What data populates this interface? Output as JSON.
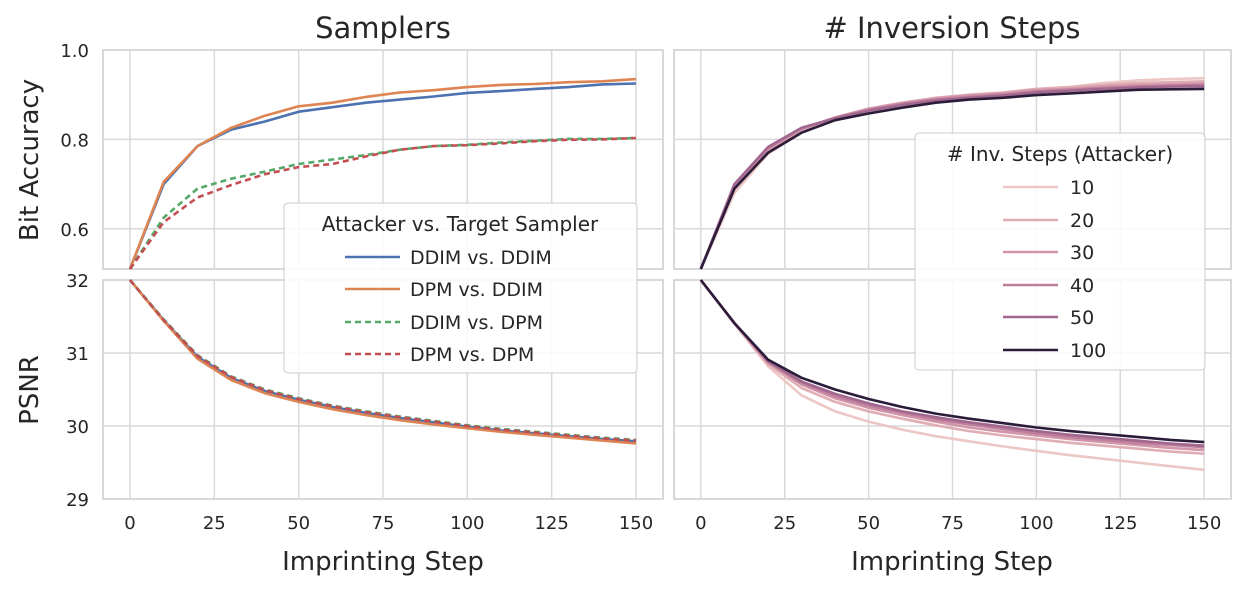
{
  "chart_data": [
    {
      "type": "line",
      "panel": "top-left",
      "title": "Samplers",
      "xlabel": "",
      "ylabel": "Bit Accuracy",
      "xlim": [
        -8,
        158
      ],
      "ylim": [
        0.51,
        1.0
      ],
      "yticks": [
        0.6,
        0.8,
        1.0
      ],
      "ytick_labels": [
        "0.6",
        "0.8",
        "1.0"
      ],
      "grid": true,
      "legend": {
        "title": "Attacker vs. Target Sampler",
        "position": "lower-right",
        "entries": [
          {
            "label": "DDIM vs. DDIM",
            "color": "#4c72b0",
            "dash": "solid"
          },
          {
            "label": "DPM vs. DDIM",
            "color": "#dd8452",
            "dash": "solid"
          },
          {
            "label": "DDIM vs. DPM",
            "color": "#55a868",
            "dash": "dashed"
          },
          {
            "label": "DPM vs. DPM",
            "color": "#c44e52",
            "dash": "dashed"
          }
        ]
      },
      "x": [
        0,
        10,
        20,
        30,
        40,
        50,
        60,
        70,
        80,
        90,
        100,
        110,
        120,
        130,
        140,
        150
      ],
      "series": [
        {
          "name": "DDIM vs. DDIM",
          "color": "#4c72b0",
          "dash": "solid",
          "values": [
            0.51,
            0.7,
            0.785,
            0.822,
            0.84,
            0.862,
            0.872,
            0.882,
            0.889,
            0.896,
            0.904,
            0.908,
            0.913,
            0.917,
            0.923,
            0.925
          ]
        },
        {
          "name": "DPM vs. DDIM",
          "color": "#dd8452",
          "dash": "solid",
          "values": [
            0.51,
            0.705,
            0.785,
            0.826,
            0.853,
            0.874,
            0.882,
            0.895,
            0.905,
            0.91,
            0.917,
            0.922,
            0.924,
            0.928,
            0.93,
            0.935
          ]
        },
        {
          "name": "DDIM vs. DPM",
          "color": "#55a868",
          "dash": "dashed",
          "values": [
            0.51,
            0.625,
            0.69,
            0.712,
            0.728,
            0.745,
            0.755,
            0.765,
            0.777,
            0.785,
            0.788,
            0.793,
            0.797,
            0.801,
            0.801,
            0.803
          ]
        },
        {
          "name": "DPM vs. DPM",
          "color": "#c44e52",
          "dash": "dashed",
          "values": [
            0.51,
            0.615,
            0.67,
            0.698,
            0.722,
            0.738,
            0.745,
            0.762,
            0.777,
            0.785,
            0.787,
            0.791,
            0.796,
            0.799,
            0.8,
            0.803
          ]
        }
      ]
    },
    {
      "type": "line",
      "panel": "top-right",
      "title": "# Inversion Steps",
      "xlabel": "",
      "ylabel": "",
      "xlim": [
        -8,
        158
      ],
      "ylim": [
        0.51,
        1.0
      ],
      "grid": true,
      "legend": {
        "title": "# Inv. Steps (Attacker)",
        "position": "right",
        "entries": [
          {
            "label": "10",
            "color": "#ecc7c5"
          },
          {
            "label": "20",
            "color": "#e0adb5"
          },
          {
            "label": "30",
            "color": "#d295a8"
          },
          {
            "label": "40",
            "color": "#be7f9d"
          },
          {
            "label": "50",
            "color": "#a2678f"
          },
          {
            "label": "100",
            "color": "#2b1c3a"
          }
        ]
      },
      "x": [
        0,
        10,
        20,
        30,
        40,
        50,
        60,
        70,
        80,
        90,
        100,
        110,
        120,
        130,
        140,
        150
      ],
      "series": [
        {
          "name": "10",
          "color": "#ecc7c5",
          "values": [
            0.51,
            0.68,
            0.768,
            0.815,
            0.848,
            0.868,
            0.88,
            0.89,
            0.897,
            0.903,
            0.912,
            0.917,
            0.926,
            0.932,
            0.935,
            0.937
          ]
        },
        {
          "name": "20",
          "color": "#e0adb5",
          "values": [
            0.51,
            0.69,
            0.775,
            0.82,
            0.849,
            0.869,
            0.882,
            0.893,
            0.9,
            0.905,
            0.913,
            0.917,
            0.922,
            0.926,
            0.928,
            0.93
          ]
        },
        {
          "name": "30",
          "color": "#d295a8",
          "values": [
            0.51,
            0.695,
            0.778,
            0.823,
            0.849,
            0.868,
            0.881,
            0.891,
            0.898,
            0.903,
            0.91,
            0.913,
            0.918,
            0.921,
            0.923,
            0.925
          ]
        },
        {
          "name": "40",
          "color": "#be7f9d",
          "values": [
            0.51,
            0.698,
            0.781,
            0.825,
            0.848,
            0.866,
            0.879,
            0.889,
            0.895,
            0.9,
            0.907,
            0.911,
            0.915,
            0.918,
            0.92,
            0.922
          ]
        },
        {
          "name": "50",
          "color": "#a2678f",
          "values": [
            0.51,
            0.7,
            0.783,
            0.826,
            0.847,
            0.864,
            0.877,
            0.887,
            0.893,
            0.898,
            0.905,
            0.909,
            0.913,
            0.916,
            0.918,
            0.919
          ]
        },
        {
          "name": "100",
          "color": "#2b1c3a",
          "values": [
            0.51,
            0.69,
            0.77,
            0.815,
            0.843,
            0.858,
            0.871,
            0.882,
            0.889,
            0.893,
            0.899,
            0.903,
            0.907,
            0.911,
            0.912,
            0.913
          ]
        }
      ]
    },
    {
      "type": "line",
      "panel": "bottom-left",
      "title": "",
      "xlabel": "Imprinting Step",
      "ylabel": "PSNR",
      "xlim": [
        -8,
        158
      ],
      "ylim": [
        29,
        32
      ],
      "xticks": [
        0,
        25,
        50,
        75,
        100,
        125,
        150
      ],
      "xtick_labels": [
        "0",
        "25",
        "50",
        "75",
        "100",
        "125",
        "150"
      ],
      "yticks": [
        29,
        30,
        31,
        32
      ],
      "ytick_labels": [
        "29",
        "30",
        "31",
        "32"
      ],
      "grid": true,
      "x": [
        0,
        10,
        20,
        30,
        40,
        50,
        60,
        70,
        80,
        90,
        100,
        110,
        120,
        130,
        140,
        150
      ],
      "series": [
        {
          "name": "DDIM vs. DDIM",
          "color": "#4c72b0",
          "dash": "solid",
          "values": [
            32.0,
            31.45,
            30.95,
            30.66,
            30.48,
            30.36,
            30.26,
            30.18,
            30.11,
            30.05,
            29.99,
            29.94,
            29.9,
            29.86,
            29.82,
            29.79
          ]
        },
        {
          "name": "DPM vs. DDIM",
          "color": "#dd8452",
          "dash": "solid",
          "values": [
            32.0,
            31.44,
            30.92,
            30.63,
            30.45,
            30.33,
            30.23,
            30.15,
            30.08,
            30.02,
            29.97,
            29.92,
            29.88,
            29.84,
            29.8,
            29.76
          ]
        },
        {
          "name": "DDIM vs. DPM",
          "color": "#55a868",
          "dash": "dashed",
          "values": [
            32.0,
            31.46,
            30.97,
            30.68,
            30.5,
            30.38,
            30.28,
            30.2,
            30.13,
            30.07,
            30.01,
            29.96,
            29.92,
            29.88,
            29.84,
            29.81
          ]
        },
        {
          "name": "DPM vs. DPM",
          "color": "#c44e52",
          "dash": "dashed",
          "values": [
            32.0,
            31.45,
            30.96,
            30.67,
            30.49,
            30.37,
            30.27,
            30.19,
            30.12,
            30.06,
            30.0,
            29.95,
            29.91,
            29.87,
            29.83,
            29.8
          ]
        }
      ]
    },
    {
      "type": "line",
      "panel": "bottom-right",
      "title": "",
      "xlabel": "Imprinting Step",
      "ylabel": "",
      "xlim": [
        -8,
        158
      ],
      "ylim": [
        29,
        32
      ],
      "xticks": [
        0,
        25,
        50,
        75,
        100,
        125,
        150
      ],
      "xtick_labels": [
        "0",
        "25",
        "50",
        "75",
        "100",
        "125",
        "150"
      ],
      "grid": true,
      "x": [
        0,
        10,
        20,
        30,
        40,
        50,
        60,
        70,
        80,
        90,
        100,
        110,
        120,
        130,
        140,
        150
      ],
      "series": [
        {
          "name": "10",
          "color": "#ecc7c5",
          "values": [
            32.0,
            31.4,
            30.82,
            30.42,
            30.2,
            30.06,
            29.95,
            29.86,
            29.79,
            29.72,
            29.66,
            29.6,
            29.55,
            29.5,
            29.45,
            29.4
          ]
        },
        {
          "name": "20",
          "color": "#e0adb5",
          "values": [
            32.0,
            31.41,
            30.85,
            30.52,
            30.33,
            30.2,
            30.1,
            30.01,
            29.93,
            29.87,
            29.82,
            29.77,
            29.73,
            29.69,
            29.65,
            29.62
          ]
        },
        {
          "name": "30",
          "color": "#d295a8",
          "values": [
            32.0,
            31.41,
            30.87,
            30.57,
            30.38,
            30.25,
            30.15,
            30.06,
            29.98,
            29.92,
            29.87,
            29.82,
            29.78,
            29.74,
            29.7,
            29.67
          ]
        },
        {
          "name": "40",
          "color": "#be7f9d",
          "values": [
            32.0,
            31.41,
            30.88,
            30.59,
            30.41,
            30.28,
            30.18,
            30.09,
            30.02,
            29.96,
            29.9,
            29.85,
            29.81,
            29.77,
            29.74,
            29.71
          ]
        },
        {
          "name": "50",
          "color": "#a2678f",
          "values": [
            32.0,
            31.41,
            30.89,
            30.61,
            30.44,
            30.31,
            30.2,
            30.12,
            30.05,
            29.99,
            29.93,
            29.88,
            29.84,
            29.8,
            29.76,
            29.73
          ]
        },
        {
          "name": "100",
          "color": "#2b1c3a",
          "values": [
            32.0,
            31.41,
            30.91,
            30.66,
            30.5,
            30.37,
            30.26,
            30.17,
            30.1,
            30.04,
            29.98,
            29.93,
            29.89,
            29.85,
            29.81,
            29.78
          ]
        }
      ]
    }
  ]
}
